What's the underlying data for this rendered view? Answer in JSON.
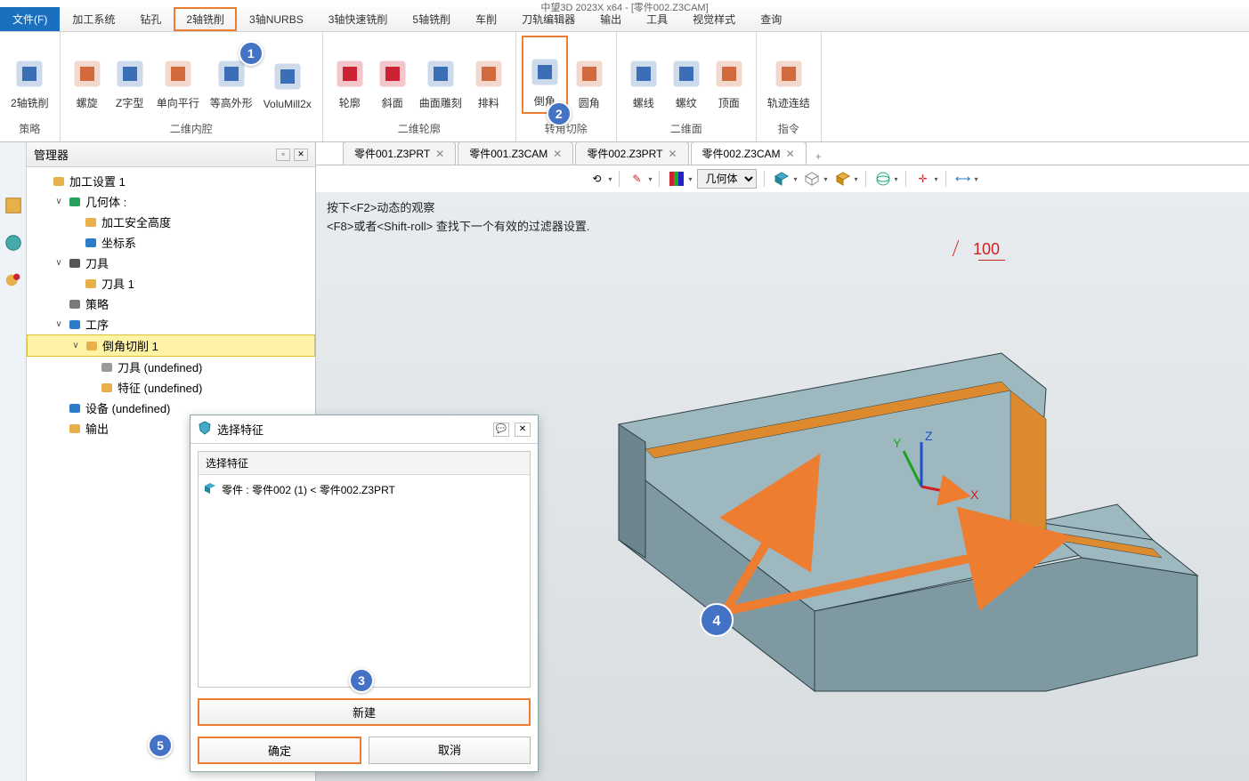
{
  "app_title": "中望3D 2023X x64 - [零件002.Z3CAM]",
  "menu": {
    "file": "文件(F)",
    "items": [
      "加工系统",
      "钻孔",
      "2轴铣削",
      "3轴NURBS",
      "3轴快速铣削",
      "5轴铣削",
      "车削",
      "刀轨编辑器",
      "输出",
      "工具",
      "视觉样式",
      "查询"
    ],
    "highlight_index": 2
  },
  "ribbon": {
    "groups": [
      {
        "title": "策略",
        "items": [
          {
            "name": "two-axis-mill",
            "label": "2轴铣削",
            "color": "#3b6fb5"
          }
        ]
      },
      {
        "title": "二维内腔",
        "items": [
          {
            "name": "spiral",
            "label": "螺旋",
            "color": "#d36a3e"
          },
          {
            "name": "zshape",
            "label": "Z字型",
            "color": "#3b6fb5"
          },
          {
            "name": "unidir",
            "label": "单向平行",
            "color": "#d36a3e"
          },
          {
            "name": "contour-eq",
            "label": "等高外形",
            "color": "#3b6fb5",
            "badge": 1
          },
          {
            "name": "volumill",
            "label": "VoluMill2x",
            "color": "#3b6fb5"
          }
        ]
      },
      {
        "title": "二维轮廓",
        "items": [
          {
            "name": "profile",
            "label": "轮廓",
            "color": "#c23"
          },
          {
            "name": "slope",
            "label": "斜面",
            "color": "#c23"
          },
          {
            "name": "engrave",
            "label": "曲面雕刻",
            "color": "#3b6fb5"
          },
          {
            "name": "stock",
            "label": "排料",
            "color": "#d36a3e"
          }
        ]
      },
      {
        "title": "转角切除",
        "items": [
          {
            "name": "chamfer",
            "label": "倒角",
            "color": "#3b6fb5",
            "hl": true,
            "badge": 2
          },
          {
            "name": "fillet",
            "label": "圆角",
            "color": "#d36a3e"
          }
        ]
      },
      {
        "title": "二维面",
        "items": [
          {
            "name": "helix",
            "label": "螺线",
            "color": "#3b6fb5"
          },
          {
            "name": "thread",
            "label": "螺纹",
            "color": "#3b6fb5"
          },
          {
            "name": "topface",
            "label": "顶面",
            "color": "#d36a3e"
          }
        ]
      },
      {
        "title": "指令",
        "items": [
          {
            "name": "link",
            "label": "轨迹连结",
            "color": "#d36a3e"
          }
        ]
      }
    ]
  },
  "manager": {
    "title": "管理器",
    "tree": [
      {
        "depth": 0,
        "exp": "",
        "icon": "folder",
        "color": "#e8b04a",
        "label": "加工设置 1"
      },
      {
        "depth": 1,
        "exp": "∨",
        "icon": "cube",
        "color": "#28a060",
        "label": "几何体 :"
      },
      {
        "depth": 2,
        "exp": "",
        "icon": "layers",
        "color": "#e8b04a",
        "label": "加工安全高度"
      },
      {
        "depth": 2,
        "exp": "",
        "icon": "axes",
        "color": "#2c7cc7",
        "label": "坐标系"
      },
      {
        "depth": 1,
        "exp": "∨",
        "icon": "tool",
        "color": "#555",
        "label": "刀具"
      },
      {
        "depth": 2,
        "exp": "",
        "icon": "tool",
        "color": "#e8b04a",
        "label": "刀具 1"
      },
      {
        "depth": 1,
        "exp": "",
        "icon": "gear",
        "color": "#7a7a7a",
        "label": "策略"
      },
      {
        "depth": 1,
        "exp": "∨",
        "icon": "cube",
        "color": "#2c7cc7",
        "label": "工序"
      },
      {
        "depth": 2,
        "exp": "∨",
        "icon": "op",
        "color": "#e8b04a",
        "label": "倒角切削 1",
        "sel": true
      },
      {
        "depth": 3,
        "exp": "",
        "icon": "dash",
        "color": "#999",
        "label": "刀具 (undefined)"
      },
      {
        "depth": 3,
        "exp": "",
        "icon": "cube",
        "color": "#e8b04a",
        "label": "特征 (undefined)"
      },
      {
        "depth": 1,
        "exp": "",
        "icon": "device",
        "color": "#2c7cc7",
        "label": "设备 (undefined)"
      },
      {
        "depth": 1,
        "exp": "",
        "icon": "output",
        "color": "#e8b04a",
        "label": "输出"
      }
    ]
  },
  "doctabs": {
    "tabs": [
      {
        "label": "零件001.Z3PRT",
        "active": false
      },
      {
        "label": "零件001.Z3CAM",
        "active": false
      },
      {
        "label": "零件002.Z3PRT",
        "active": false
      },
      {
        "label": "零件002.Z3CAM",
        "active": true
      }
    ]
  },
  "viewtoolbar": {
    "select_label": "几何体"
  },
  "canvas": {
    "hint1": "按下<F2>动态的观察",
    "hint2": "<F8>或者<Shift-roll> 查找下一个有效的过滤器设置.",
    "dim_label": "100",
    "model": {
      "top_fill": "#9eb8bf",
      "front_fill": "#7f99a2",
      "side_fill": "#6d858e",
      "chamfer_fill": "#dd8a2e",
      "edge_stroke": "#2c3e44"
    },
    "axes": {
      "x": "#d02020",
      "y": "#20a020",
      "z": "#2050d0"
    },
    "arrow_color": "#ed7d31",
    "badge4": 4
  },
  "dialog": {
    "title": "选择特征",
    "group_title": "选择特征",
    "item": "零件 : 零件002 (1) < 零件002.Z3PRT",
    "btn_new": "新建",
    "btn_ok": "确定",
    "btn_cancel": "取消",
    "badge3": 3,
    "badge5": 5
  },
  "colors": {
    "highlight_border": "#ed7d31",
    "badge_bg": "#4472c4"
  }
}
